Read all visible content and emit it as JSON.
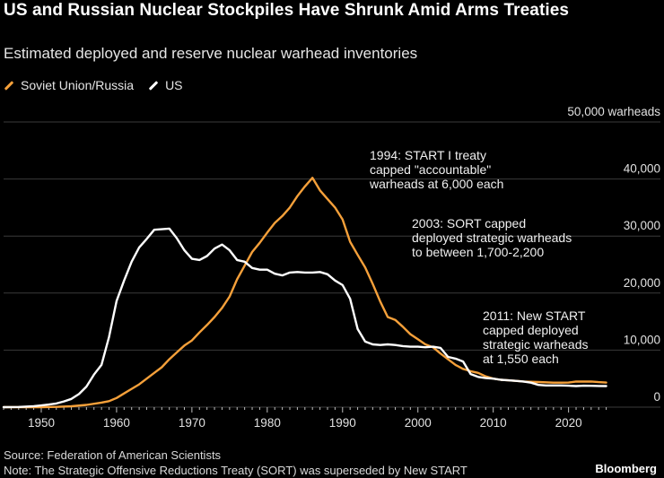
{
  "header": {
    "title": "US and Russian Nuclear Stockpiles Have Shrunk Amid Arms Treaties",
    "subtitle": "Estimated deployed and reserve nuclear warhead inventories"
  },
  "legend": [
    {
      "label": "Soviet Union/Russia",
      "color": "#f5a03a"
    },
    {
      "label": "US",
      "color": "#ffffff"
    }
  ],
  "footer": {
    "source": "Source: Federation of American Scientists",
    "note": "Note: The Strategic Offensive Reductions Treaty (SORT) was superseded by New START",
    "brand": "Bloomberg"
  },
  "chart_data": {
    "type": "line",
    "title": "US and Russian Nuclear Stockpiles Have Shrunk Amid Arms Treaties",
    "subtitle": "Estimated deployed and reserve nuclear warhead inventories",
    "xlabel": "",
    "ylabel": "",
    "xlim": [
      1945,
      2026
    ],
    "ylim": [
      0,
      50000
    ],
    "x_ticks": [
      1950,
      1960,
      1970,
      1980,
      1990,
      2000,
      2010,
      2020
    ],
    "y_ticks": [
      {
        "value": 0,
        "label": "0"
      },
      {
        "value": 10000,
        "label": "10,000"
      },
      {
        "value": 20000,
        "label": "20,000"
      },
      {
        "value": 30000,
        "label": "30,000"
      },
      {
        "value": 40000,
        "label": "40,000"
      },
      {
        "value": 50000,
        "label": "50,000 warheads"
      }
    ],
    "grid": "horizontal",
    "legend_position": "top-left",
    "series": [
      {
        "name": "Soviet Union/Russia",
        "color": "#f5a03a",
        "points": [
          [
            1945,
            0
          ],
          [
            1949,
            0
          ],
          [
            1950,
            5
          ],
          [
            1952,
            50
          ],
          [
            1954,
            150
          ],
          [
            1956,
            400
          ],
          [
            1958,
            800
          ],
          [
            1959,
            1050
          ],
          [
            1960,
            1600
          ],
          [
            1961,
            2400
          ],
          [
            1962,
            3200
          ],
          [
            1963,
            4000
          ],
          [
            1964,
            5000
          ],
          [
            1965,
            6000
          ],
          [
            1966,
            7000
          ],
          [
            1967,
            8400
          ],
          [
            1968,
            9600
          ],
          [
            1969,
            10800
          ],
          [
            1970,
            11700
          ],
          [
            1971,
            13100
          ],
          [
            1972,
            14400
          ],
          [
            1973,
            15800
          ],
          [
            1974,
            17400
          ],
          [
            1975,
            19400
          ],
          [
            1976,
            22400
          ],
          [
            1977,
            24800
          ],
          [
            1978,
            27200
          ],
          [
            1979,
            28800
          ],
          [
            1980,
            30600
          ],
          [
            1981,
            32300
          ],
          [
            1982,
            33500
          ],
          [
            1983,
            35000
          ],
          [
            1984,
            37000
          ],
          [
            1985,
            38700
          ],
          [
            1986,
            40200
          ],
          [
            1987,
            38000
          ],
          [
            1988,
            36500
          ],
          [
            1989,
            35000
          ],
          [
            1990,
            32900
          ],
          [
            1991,
            29000
          ],
          [
            1992,
            26700
          ],
          [
            1993,
            24500
          ],
          [
            1994,
            21600
          ],
          [
            1995,
            18500
          ],
          [
            1996,
            15800
          ],
          [
            1997,
            15300
          ],
          [
            1998,
            14100
          ],
          [
            1999,
            12800
          ],
          [
            2000,
            11900
          ],
          [
            2001,
            11000
          ],
          [
            2002,
            10500
          ],
          [
            2003,
            9400
          ],
          [
            2004,
            8400
          ],
          [
            2005,
            7400
          ],
          [
            2006,
            6700
          ],
          [
            2007,
            6300
          ],
          [
            2008,
            6000
          ],
          [
            2009,
            5400
          ],
          [
            2010,
            5000
          ],
          [
            2011,
            4800
          ],
          [
            2012,
            4700
          ],
          [
            2013,
            4600
          ],
          [
            2014,
            4500
          ],
          [
            2015,
            4450
          ],
          [
            2016,
            4400
          ],
          [
            2017,
            4350
          ],
          [
            2018,
            4300
          ],
          [
            2019,
            4300
          ],
          [
            2020,
            4310
          ],
          [
            2021,
            4500
          ],
          [
            2022,
            4477
          ],
          [
            2023,
            4489
          ],
          [
            2024,
            4380
          ],
          [
            2025,
            4309
          ]
        ]
      },
      {
        "name": "US",
        "color": "#ffffff",
        "points": [
          [
            1945,
            2
          ],
          [
            1947,
            32
          ],
          [
            1949,
            170
          ],
          [
            1950,
            300
          ],
          [
            1951,
            450
          ],
          [
            1952,
            650
          ],
          [
            1953,
            1000
          ],
          [
            1954,
            1450
          ],
          [
            1955,
            2300
          ],
          [
            1956,
            3600
          ],
          [
            1957,
            5700
          ],
          [
            1958,
            7400
          ],
          [
            1959,
            12300
          ],
          [
            1960,
            18600
          ],
          [
            1961,
            22200
          ],
          [
            1962,
            25500
          ],
          [
            1963,
            28000
          ],
          [
            1964,
            29500
          ],
          [
            1965,
            31100
          ],
          [
            1966,
            31200
          ],
          [
            1967,
            31300
          ],
          [
            1968,
            29600
          ],
          [
            1969,
            27500
          ],
          [
            1970,
            26000
          ],
          [
            1971,
            25800
          ],
          [
            1972,
            26500
          ],
          [
            1973,
            27800
          ],
          [
            1974,
            28500
          ],
          [
            1975,
            27500
          ],
          [
            1976,
            25800
          ],
          [
            1977,
            25500
          ],
          [
            1978,
            24400
          ],
          [
            1979,
            24100
          ],
          [
            1980,
            24100
          ],
          [
            1981,
            23400
          ],
          [
            1982,
            23100
          ],
          [
            1983,
            23600
          ],
          [
            1984,
            23700
          ],
          [
            1985,
            23600
          ],
          [
            1986,
            23600
          ],
          [
            1987,
            23700
          ],
          [
            1988,
            23300
          ],
          [
            1989,
            22200
          ],
          [
            1990,
            21400
          ],
          [
            1991,
            19000
          ],
          [
            1992,
            13700
          ],
          [
            1993,
            11500
          ],
          [
            1994,
            11000
          ],
          [
            1995,
            10900
          ],
          [
            1996,
            11000
          ],
          [
            1997,
            10900
          ],
          [
            1998,
            10700
          ],
          [
            1999,
            10600
          ],
          [
            2000,
            10600
          ],
          [
            2001,
            10500
          ],
          [
            2002,
            10600
          ],
          [
            2003,
            10400
          ],
          [
            2004,
            8800
          ],
          [
            2005,
            8500
          ],
          [
            2006,
            8000
          ],
          [
            2007,
            5800
          ],
          [
            2008,
            5300
          ],
          [
            2009,
            5100
          ],
          [
            2010,
            5000
          ],
          [
            2011,
            4800
          ],
          [
            2012,
            4700
          ],
          [
            2013,
            4600
          ],
          [
            2014,
            4500
          ],
          [
            2015,
            4300
          ],
          [
            2016,
            3900
          ],
          [
            2017,
            3800
          ],
          [
            2018,
            3800
          ],
          [
            2019,
            3800
          ],
          [
            2020,
            3750
          ],
          [
            2021,
            3700
          ],
          [
            2022,
            3750
          ],
          [
            2023,
            3748
          ],
          [
            2024,
            3708
          ],
          [
            2025,
            3700
          ]
        ]
      }
    ],
    "annotations": [
      {
        "id": "start1",
        "lines": [
          "1994: START I treaty",
          "capped \"accountable\"",
          "warheads at 6,000 each"
        ]
      },
      {
        "id": "sort",
        "lines": [
          "2003: SORT capped",
          "deployed strategic warheads",
          "to between 1,700-2,200"
        ]
      },
      {
        "id": "newstart",
        "lines": [
          "2011: New START",
          "capped deployed",
          "strategic warheads",
          "at 1,550 each"
        ]
      }
    ]
  }
}
